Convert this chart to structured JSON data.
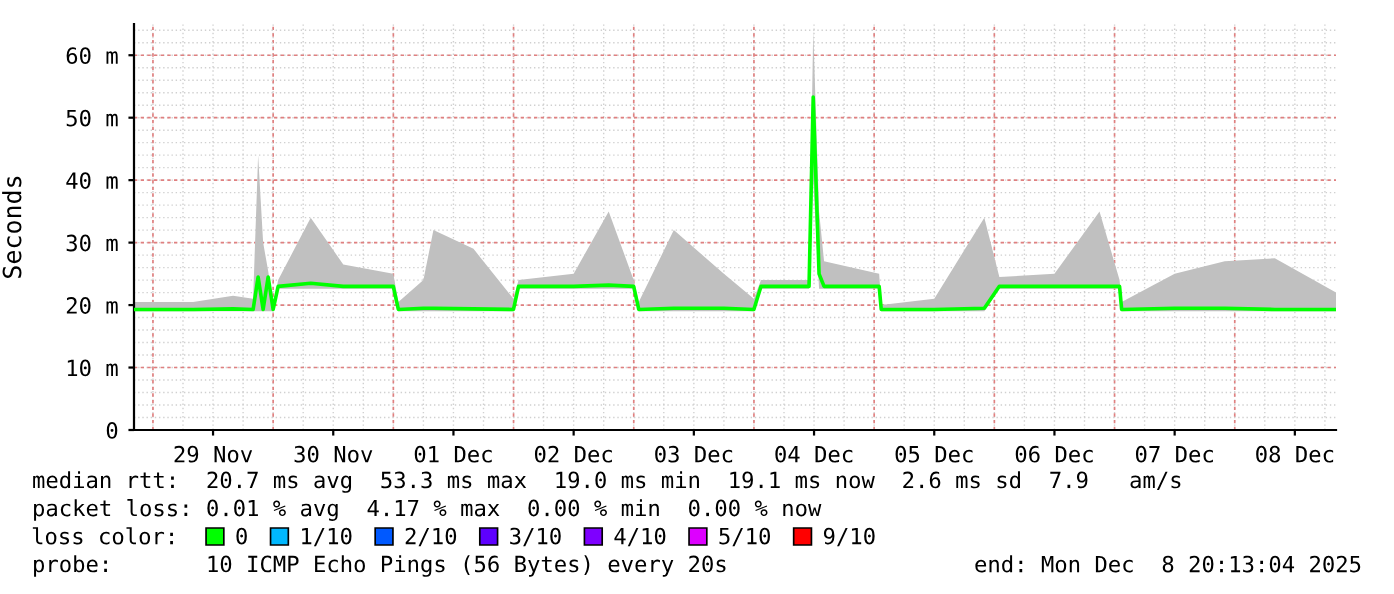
{
  "chart_data": {
    "type": "line",
    "ylabel": "Seconds",
    "x": [
      "2025-11-28T20:13",
      "2025-11-29T08:00",
      "2025-11-29T16:00",
      "2025-11-29T20:00",
      "2025-11-29T21:00",
      "2025-11-29T22:00",
      "2025-11-29T23:00",
      "2025-11-30T00:00",
      "2025-11-30T01:00",
      "2025-11-30T07:30",
      "2025-11-30T14:00",
      "2025-11-30T23:59",
      "2025-12-01T01:00",
      "2025-12-01T06:00",
      "2025-12-01T08:00",
      "2025-12-01T16:00",
      "2025-12-01T23:59",
      "2025-12-02T01:00",
      "2025-12-02T12:00",
      "2025-12-02T19:00",
      "2025-12-02T23:59",
      "2025-12-03T01:00",
      "2025-12-03T08:00",
      "2025-12-03T18:00",
      "2025-12-03T23:59",
      "2025-12-04T01:25",
      "2025-12-04T11:00",
      "2025-12-04T11:50",
      "2025-12-04T13:00",
      "2025-12-04T14:00",
      "2025-12-05T01:00",
      "2025-12-05T01:25",
      "2025-12-05T12:00",
      "2025-12-05T22:00",
      "2025-12-06T01:00",
      "2025-12-06T12:00",
      "2025-12-06T21:00",
      "2025-12-07T01:00",
      "2025-12-07T01:25",
      "2025-12-07T12:00",
      "2025-12-07T22:00",
      "2025-12-08T08:00",
      "2025-12-08T20:13"
    ],
    "series": [
      {
        "name": "0",
        "color": "#00ff00",
        "values": [
          19.3,
          19.3,
          19.4,
          19.3,
          24.5,
          19.3,
          24.5,
          19.3,
          23,
          23.5,
          23,
          23,
          19.3,
          19.5,
          19.5,
          19.4,
          19.3,
          23,
          23,
          23.2,
          23,
          19.3,
          19.5,
          19.5,
          19.3,
          23,
          23,
          53.3,
          25,
          23,
          23,
          19.3,
          19.3,
          19.5,
          23,
          23,
          23,
          23,
          19.3,
          19.5,
          19.5,
          19.3,
          19.3
        ],
        "lower": [
          19,
          19,
          19,
          19,
          19,
          19,
          19,
          19,
          22.6,
          22.6,
          22.6,
          22.6,
          19,
          19,
          19,
          19,
          19,
          22.6,
          22.6,
          22.6,
          22.6,
          19,
          19,
          19,
          19,
          22.6,
          22.6,
          40,
          22.6,
          22.6,
          22.6,
          19,
          19,
          19,
          22.6,
          22.6,
          22.6,
          22.6,
          19,
          19,
          19,
          19,
          19
        ],
        "upper": [
          20.5,
          20.5,
          21.5,
          21,
          44,
          30,
          25.5,
          20,
          24,
          34,
          26.5,
          25,
          20.5,
          24,
          32,
          29,
          21,
          24,
          25,
          35,
          24,
          20.5,
          32,
          25,
          21,
          24,
          24,
          64,
          35,
          27,
          25,
          20,
          21,
          34,
          24.5,
          25,
          35,
          24,
          20.5,
          25,
          27,
          27.5,
          22
        ]
      },
      {
        "name": "1/10",
        "color": "#00b8ff",
        "values": [
          null,
          null,
          null,
          null,
          null,
          null,
          null,
          null,
          null,
          null,
          null,
          null,
          null,
          null,
          null,
          null,
          null,
          null,
          null,
          null,
          null,
          null,
          null,
          null,
          null,
          null,
          null,
          null,
          null,
          null,
          null,
          null,
          null,
          null,
          null,
          null,
          null,
          null,
          null,
          null,
          null,
          null,
          null
        ]
      },
      {
        "name": "2/10",
        "color": "#0059ff",
        "values": [
          null,
          null,
          null,
          null,
          null,
          null,
          null,
          null,
          null,
          null,
          null,
          null,
          null,
          null,
          null,
          null,
          null,
          null,
          null,
          null,
          null,
          null,
          null,
          null,
          null,
          null,
          null,
          null,
          null,
          null,
          null,
          null,
          null,
          null,
          null,
          null,
          null,
          null,
          null,
          null,
          null,
          null,
          null
        ]
      },
      {
        "name": "3/10",
        "color": "#5e00ff",
        "values": [
          null,
          null,
          null,
          null,
          null,
          null,
          null,
          null,
          null,
          null,
          null,
          null,
          null,
          null,
          null,
          null,
          null,
          null,
          null,
          null,
          null,
          null,
          null,
          null,
          null,
          null,
          null,
          null,
          null,
          null,
          null,
          null,
          null,
          null,
          null,
          null,
          null,
          null,
          null,
          null,
          null,
          null,
          null
        ]
      },
      {
        "name": "4/10",
        "color": "#7e00ff",
        "values": [
          null,
          null,
          null,
          null,
          null,
          null,
          null,
          null,
          null,
          null,
          null,
          null,
          null,
          null,
          null,
          null,
          null,
          null,
          null,
          null,
          null,
          null,
          null,
          null,
          null,
          null,
          null,
          null,
          null,
          null,
          null,
          null,
          null,
          null,
          null,
          null,
          null,
          null,
          null,
          null,
          null,
          null,
          null
        ]
      },
      {
        "name": "5/10",
        "color": "#dd00ff",
        "values": [
          null,
          null,
          null,
          null,
          null,
          null,
          null,
          null,
          null,
          null,
          null,
          null,
          null,
          null,
          null,
          null,
          null,
          null,
          null,
          null,
          null,
          null,
          null,
          null,
          null,
          null,
          null,
          null,
          null,
          null,
          null,
          null,
          null,
          null,
          null,
          null,
          null,
          null,
          null,
          null,
          null,
          null,
          null
        ]
      },
      {
        "name": "9/10",
        "color": "#ff0000",
        "values": [
          null,
          null,
          null,
          null,
          null,
          null,
          null,
          null,
          null,
          null,
          null,
          null,
          null,
          null,
          null,
          null,
          null,
          null,
          null,
          null,
          null,
          null,
          null,
          null,
          null,
          null,
          null,
          null,
          null,
          null,
          null,
          null,
          null,
          null,
          null,
          null,
          null,
          null,
          null,
          null,
          null,
          null,
          null
        ]
      }
    ],
    "xlim": [
      "2025-11-28T20:13",
      "2025-12-08T20:13"
    ],
    "xticks": [
      {
        "value": "2025-11-29T12:00",
        "label": "29 Nov"
      },
      {
        "value": "2025-11-30T12:00",
        "label": "30 Nov"
      },
      {
        "value": "2025-12-01T12:00",
        "label": "01 Dec"
      },
      {
        "value": "2025-12-02T12:00",
        "label": "02 Dec"
      },
      {
        "value": "2025-12-03T12:00",
        "label": "03 Dec"
      },
      {
        "value": "2025-12-04T12:00",
        "label": "04 Dec"
      },
      {
        "value": "2025-12-05T12:00",
        "label": "05 Dec"
      },
      {
        "value": "2025-12-06T12:00",
        "label": "06 Dec"
      },
      {
        "value": "2025-12-07T12:00",
        "label": "07 Dec"
      },
      {
        "value": "2025-12-08T12:00",
        "label": "08 Dec"
      }
    ],
    "ylim": [
      0,
      65
    ],
    "yticks": [
      0,
      {
        "value": 10,
        "label": "10 m"
      },
      {
        "value": 20,
        "label": "20 m"
      },
      {
        "value": 30,
        "label": "30 m"
      },
      {
        "value": 40,
        "label": "40 m"
      },
      {
        "value": 50,
        "label": "50 m"
      },
      {
        "value": 60,
        "label": "60 m"
      }
    ],
    "grid": true,
    "legend": "bottom",
    "legend_title": "loss color:",
    "marker": "none",
    "line_style": "solid",
    "annotations": [
      "median rtt:  20.7 ms avg  53.3 ms max  19.0 ms min  19.1 ms now  2.6 ms sd  7.9   am/s",
      "packet loss: 0.01 % avg  4.17 % max  0.00 % min  0.00 % now",
      "probe:       10 ICMP Echo Pings (56 Bytes) every 20s",
      "end: Mon Dec  8 20:13:04 2025"
    ]
  }
}
